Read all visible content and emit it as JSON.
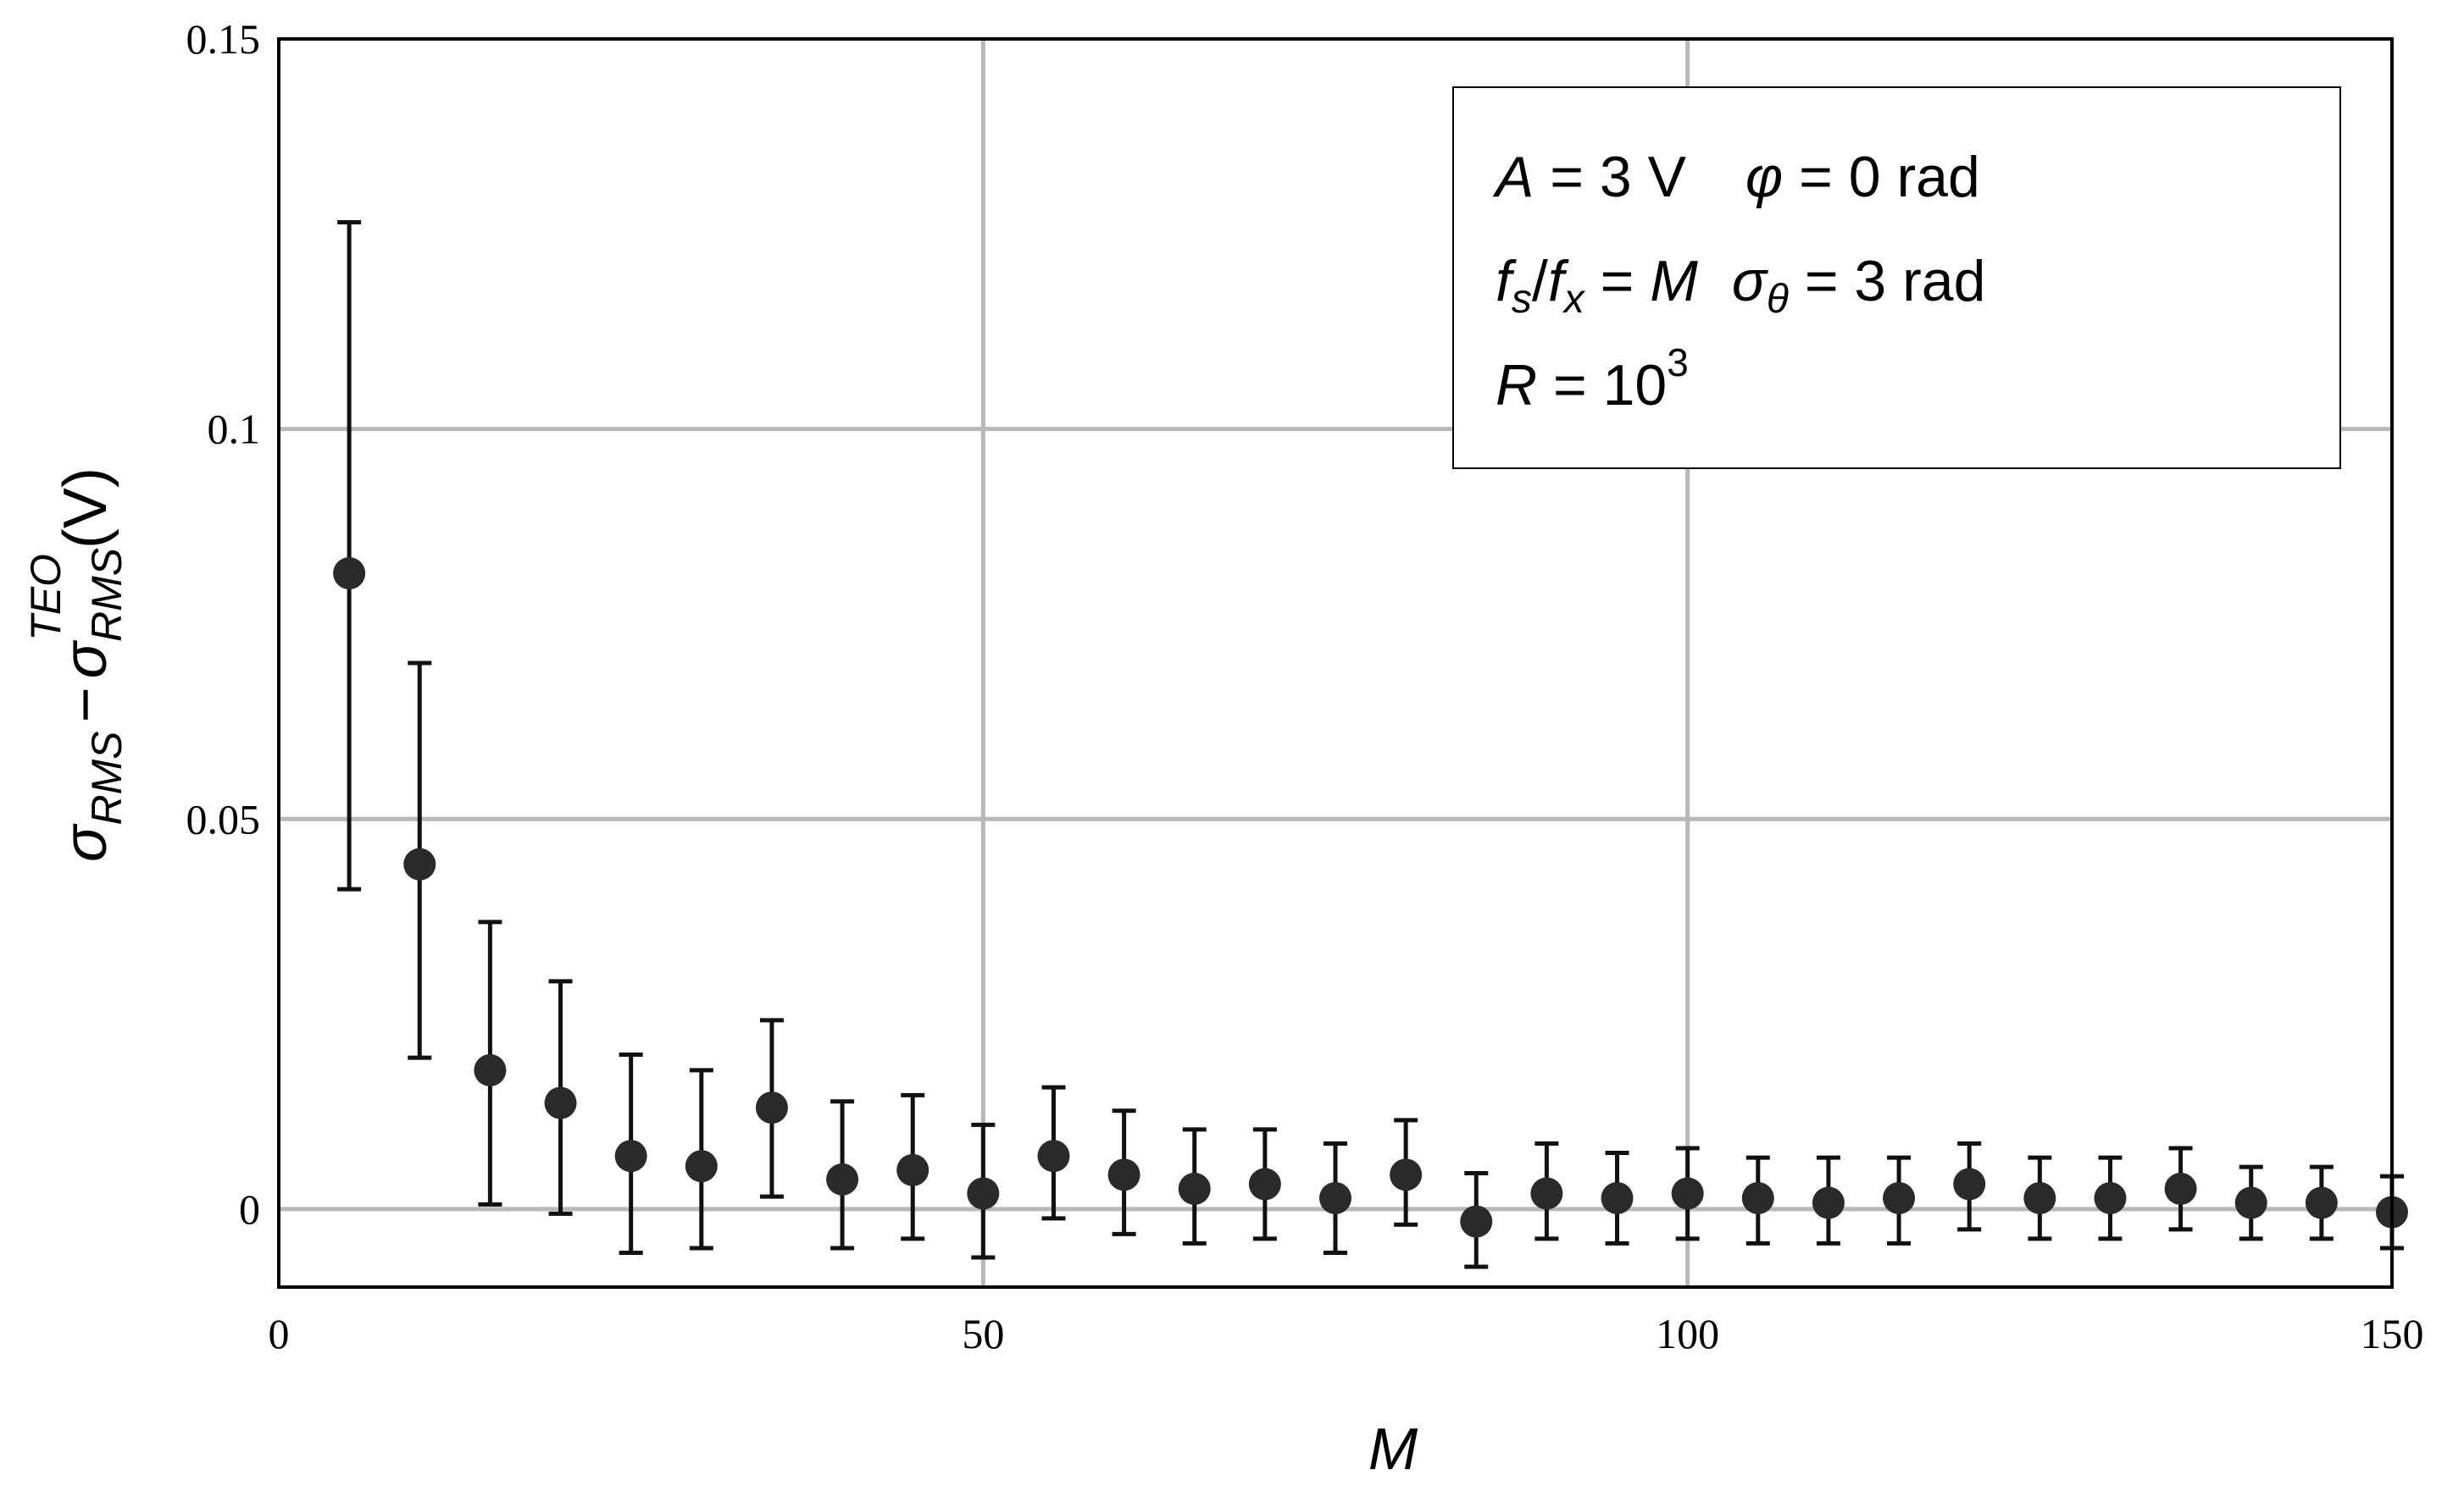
{
  "chart_data": {
    "type": "scatter",
    "xlabel": "M",
    "ylabel": {
      "sigma": "σ",
      "sub": "RMS",
      "minus": "−",
      "sup": "TEO",
      "unit": "(V)"
    },
    "xlim": [
      0,
      150
    ],
    "ylim": [
      -0.01,
      0.15
    ],
    "x_ticks": [
      {
        "value": 0,
        "label": "0"
      },
      {
        "value": 50,
        "label": "50"
      },
      {
        "value": 100,
        "label": "100"
      },
      {
        "value": 150,
        "label": "150"
      }
    ],
    "y_ticks": [
      {
        "value": 0,
        "label": "0"
      },
      {
        "value": 0.05,
        "label": "0.05"
      },
      {
        "value": 0.1,
        "label": "0.1"
      },
      {
        "value": 0.15,
        "label": "0.15"
      }
    ],
    "grid": true,
    "legend_position": "top-right",
    "annotation": {
      "line1": {
        "A": "A",
        "A_val": " = 3 V",
        "phi": "φ",
        "phi_val": " = 0 rad"
      },
      "line2": {
        "f": "f",
        "s": "s",
        "slash": "/",
        "x": "x",
        "eq": " = ",
        "M": "M",
        "sigma": "σ",
        "theta": "θ",
        "sig_val": " = 3 rad"
      },
      "line3": {
        "R": "R",
        "eq": " = 10",
        "exp": "3"
      }
    },
    "series": [
      {
        "x": [
          5,
          10,
          15,
          20,
          25,
          30,
          35,
          40,
          45,
          50,
          55,
          60,
          65,
          70,
          75,
          80,
          85,
          90,
          95,
          100,
          105,
          110,
          115,
          120,
          125,
          130,
          135,
          140,
          145,
          150
        ],
        "y": [
          0.0815,
          0.0442,
          0.0178,
          0.0136,
          0.0068,
          0.0055,
          0.013,
          0.0038,
          0.005,
          0.002,
          0.0068,
          0.0044,
          0.0026,
          0.0032,
          0.0014,
          0.0044,
          -0.0016,
          0.002,
          0.0014,
          0.002,
          0.0014,
          0.0008,
          0.0014,
          0.0032,
          0.0014,
          0.0014,
          0.0026,
          0.0008,
          0.0008,
          -0.0004
        ],
        "y_low": [
          0.041,
          0.0194,
          0.0006,
          -0.0006,
          -0.0056,
          -0.005,
          0.0016,
          -0.005,
          -0.0038,
          -0.0062,
          -0.0012,
          -0.0032,
          -0.0044,
          -0.0038,
          -0.0056,
          -0.002,
          -0.0074,
          -0.0038,
          -0.0044,
          -0.0038,
          -0.0044,
          -0.0044,
          -0.0044,
          -0.0026,
          -0.0038,
          -0.0038,
          -0.0026,
          -0.0038,
          -0.0038,
          -0.005
        ],
        "y_high": [
          0.1265,
          0.07,
          0.0368,
          0.0292,
          0.0198,
          0.0178,
          0.0242,
          0.0138,
          0.0146,
          0.0108,
          0.0156,
          0.0126,
          0.0102,
          0.0102,
          0.0084,
          0.0114,
          0.0046,
          0.0084,
          0.0072,
          0.0078,
          0.0066,
          0.0066,
          0.0066,
          0.0084,
          0.0066,
          0.0066,
          0.0078,
          0.0054,
          0.0054,
          0.0042
        ]
      }
    ]
  }
}
